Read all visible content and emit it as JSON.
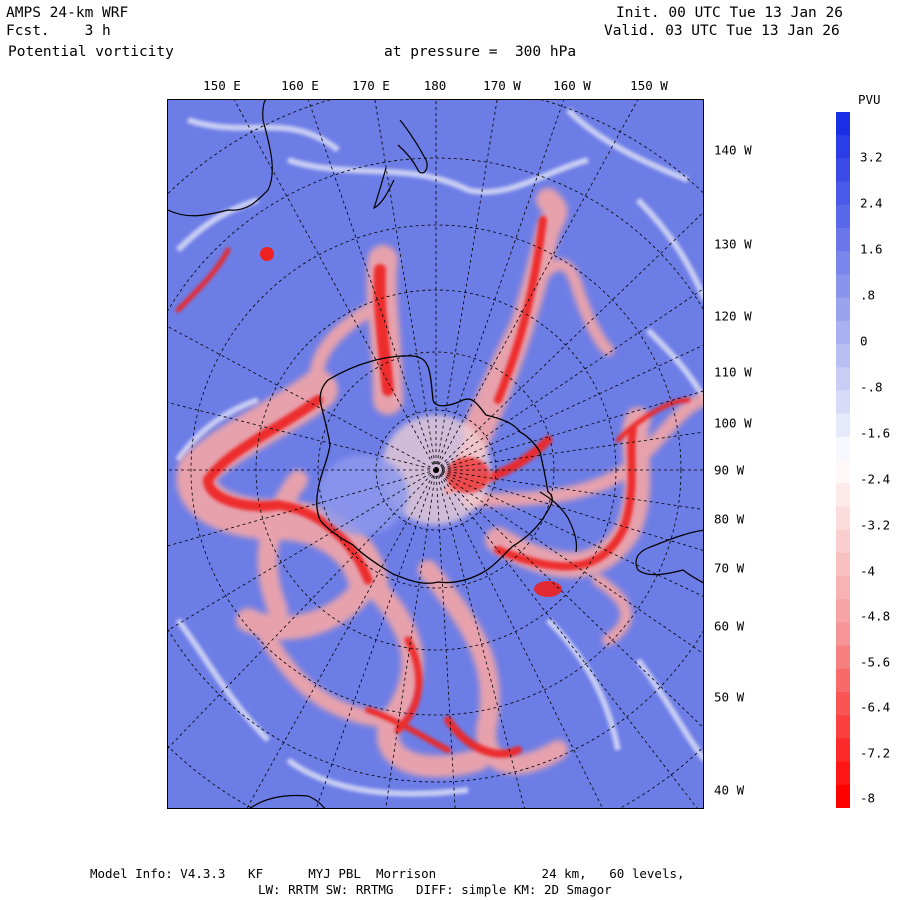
{
  "header": {
    "model": "AMPS 24-km WRF",
    "fcst": "Fcst.    3 h",
    "field": "Potential vorticity",
    "pressure": "at pressure =  300 hPa",
    "init": "Init. 00 UTC Tue 13 Jan 26",
    "valid": "Valid. 03 UTC Tue 13 Jan 26"
  },
  "map": {
    "top_longitudes": [
      "150 E",
      "160 E",
      "170 E",
      "180",
      "170 W",
      "160 W",
      "150 W"
    ],
    "right_longitudes": [
      "140 W",
      "130 W",
      "120 W",
      "110 W",
      "100 W",
      "90 W",
      "80 W",
      "70 W",
      "60 W",
      "50 W",
      "40 W"
    ]
  },
  "colorbar": {
    "unit": "PVU",
    "labels": [
      "3.2",
      "2.4",
      "1.6",
      ".8",
      "0",
      "-.8",
      "-1.6",
      "-2.4",
      "-3.2",
      "-4",
      "-4.8",
      "-5.6",
      "-6.4",
      "-7.2",
      "-8"
    ],
    "colors": {
      "top": "#1a2ee6",
      "middle_blue": "#8d98ec",
      "neutral": "#ffffff",
      "middle_red": "#f59a9a",
      "bottom": "#ff0000"
    }
  },
  "footer": {
    "line1": "Model Info: V4.3.3   KF      MYJ PBL  Morrison              24 km,   60 levels,",
    "line2": "LW: RRTM SW: RRTMG   DIFF: simple KM: 2D Smagor"
  }
}
